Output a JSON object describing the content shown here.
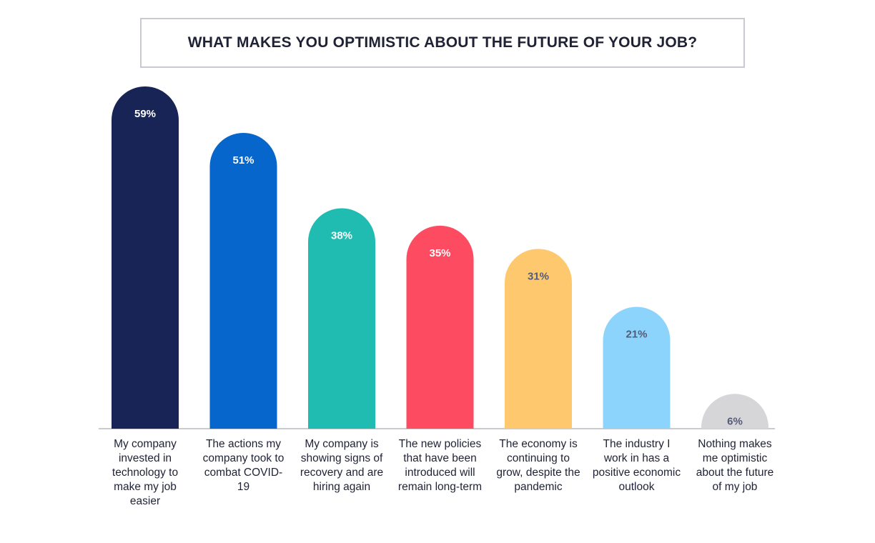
{
  "chart_data": {
    "type": "bar",
    "title": "WHAT MAKES YOU OPTIMISTIC ABOUT THE FUTURE OF YOUR JOB?",
    "categories": [
      "My company invested in technology to make my job easier",
      "The actions my company took to combat COVID-19",
      "My company is showing signs of recovery and are hiring again",
      "The new policies that have been introduced will remain long-term",
      "The economy is continuing to grow, despite the pandemic",
      "The industry I work in has a positive economic outlook",
      "Nothing makes me optimistic about the future of my job"
    ],
    "values": [
      59,
      51,
      38,
      35,
      31,
      21,
      6
    ],
    "value_labels": [
      "59%",
      "51%",
      "38%",
      "35%",
      "31%",
      "21%",
      "6%"
    ],
    "colors": [
      "#182356",
      "#0766cc",
      "#21bcb1",
      "#fd4b62",
      "#fec96e",
      "#8dd4fd",
      "#d6d6d9"
    ],
    "label_colors": [
      "#ffffff",
      "#ffffff",
      "#ffffff",
      "#ffffff",
      "#555a78",
      "#555a78",
      "#555a78"
    ],
    "ylim": [
      0,
      59
    ],
    "grid": false,
    "legend": "none"
  }
}
